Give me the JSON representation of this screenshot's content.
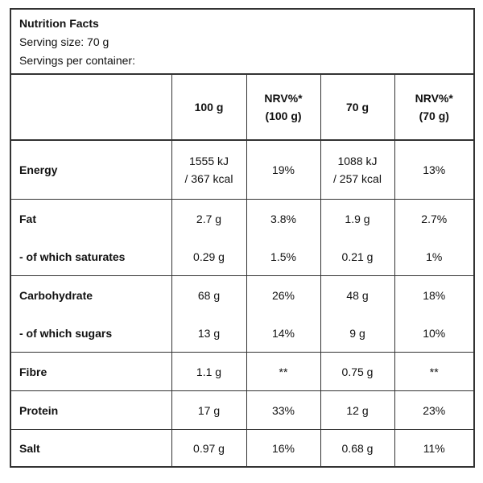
{
  "header": {
    "title": "Nutrition Facts",
    "serving_size": "Serving size: 70 g",
    "servings_per_container": "Servings per container:"
  },
  "table": {
    "columns": [
      "",
      [
        "100 g"
      ],
      [
        "NRV%*",
        "(100 g)"
      ],
      [
        "70 g"
      ],
      [
        "NRV%*",
        "(70 g)"
      ]
    ],
    "groups": [
      [
        [
          "Energy",
          [
            "1555 kJ",
            "/ 367 kcal"
          ],
          "19%",
          [
            "1088 kJ",
            "/ 257 kcal"
          ],
          "13%"
        ]
      ],
      [
        [
          "Fat",
          "2.7 g",
          "3.8%",
          "1.9 g",
          "2.7%"
        ],
        [
          "- of which saturates",
          "0.29 g",
          "1.5%",
          "0.21 g",
          "1%"
        ]
      ],
      [
        [
          "Carbohydrate",
          "68 g",
          "26%",
          "48 g",
          "18%"
        ],
        [
          "- of which sugars",
          "13 g",
          "14%",
          "9 g",
          "10%"
        ]
      ],
      [
        [
          "Fibre",
          "1.1 g",
          "**",
          "0.75 g",
          "**"
        ]
      ],
      [
        [
          "Protein",
          "17 g",
          "33%",
          "12 g",
          "23%"
        ]
      ],
      [
        [
          "Salt",
          "0.97 g",
          "16%",
          "0.68 g",
          "11%"
        ]
      ]
    ]
  }
}
